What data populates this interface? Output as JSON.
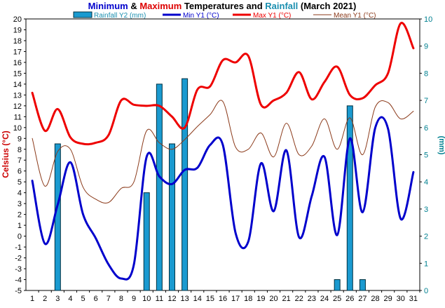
{
  "chart_data": {
    "type": "bar+line",
    "title_parts": [
      {
        "text": "Minimum",
        "color": "#0000cc"
      },
      {
        "text": " & ",
        "color": "#000000"
      },
      {
        "text": "Maximum",
        "color": "#dd0000"
      },
      {
        "text": " Temperatures and ",
        "color": "#000000"
      },
      {
        "text": "Rainfall",
        "color": "#1a8fb0"
      },
      {
        "text": " (March 2021)",
        "color": "#000000"
      }
    ],
    "ylabel_left": "Celsius (°C)",
    "ylabel_right": "(mm)",
    "ylim_left": [
      -5,
      20
    ],
    "ylim_right": [
      0,
      10
    ],
    "x": [
      1,
      2,
      3,
      4,
      5,
      6,
      7,
      8,
      9,
      10,
      11,
      12,
      13,
      14,
      15,
      16,
      17,
      18,
      19,
      20,
      21,
      22,
      23,
      24,
      25,
      26,
      27,
      28,
      29,
      30,
      31
    ],
    "y_ticks_left": [
      -5,
      -4,
      -3,
      -2,
      -1,
      0,
      1,
      2,
      3,
      4,
      5,
      6,
      7,
      8,
      9,
      10,
      11,
      12,
      13,
      14,
      15,
      16,
      17,
      18,
      19,
      20
    ],
    "y_ticks_right": [
      0,
      1,
      2,
      3,
      4,
      5,
      6,
      7,
      8,
      9,
      10
    ],
    "legend": [
      {
        "label": "Rainfall Y2 (mm)",
        "kind": "bar",
        "color": "#1a9ad0"
      },
      {
        "label": "Min Y1 (°C)",
        "kind": "line",
        "color": "#0000cc"
      },
      {
        "label": "Max Y1 (°C)",
        "kind": "line",
        "color": "#ee0000"
      },
      {
        "label": "Mean Y1 (°C)",
        "kind": "line",
        "color": "#8b3a1a"
      }
    ],
    "series": [
      {
        "name": "Rainfall Y2 (mm)",
        "axis": "right",
        "type": "bar",
        "color": "#1a9ad0",
        "values": [
          0,
          0,
          5.4,
          0,
          0,
          0,
          0,
          0,
          0,
          3.6,
          7.6,
          5.4,
          7.8,
          0,
          0,
          0,
          0,
          0,
          0,
          0,
          0,
          0,
          0,
          0,
          0.4,
          6.8,
          0.4,
          0,
          0,
          0,
          0
        ]
      },
      {
        "name": "Min Y1 (°C)",
        "axis": "left",
        "type": "line",
        "color": "#0000cc",
        "values": [
          5.1,
          -0.7,
          2.9,
          6.8,
          2.0,
          -0.2,
          -2.6,
          -3.9,
          -2.6,
          7.3,
          5.5,
          4.8,
          6.1,
          6.3,
          8.4,
          8.4,
          0.3,
          -0.5,
          6.7,
          2.3,
          7.9,
          -0.1,
          3.7,
          7.3,
          0.1,
          9.0,
          2.2,
          10.0,
          9.9,
          1.6,
          5.9
        ]
      },
      {
        "name": "Max Y1 (°C)",
        "axis": "left",
        "type": "line",
        "color": "#ee0000",
        "values": [
          13.2,
          9.7,
          11.7,
          9.1,
          8.5,
          8.6,
          9.3,
          12.5,
          12.1,
          12.0,
          12.0,
          11.0,
          10.0,
          13.5,
          13.8,
          16.2,
          16.0,
          16.6,
          12.1,
          12.5,
          13.2,
          15.1,
          12.6,
          14.2,
          15.6,
          13.0,
          12.7,
          13.9,
          15.0,
          19.6,
          17.3
        ]
      },
      {
        "name": "Mean Y1 (°C)",
        "axis": "left",
        "type": "line",
        "color": "#8b3a1a",
        "values": [
          9.0,
          4.6,
          7.8,
          8.0,
          4.5,
          3.4,
          3.1,
          4.4,
          5.0,
          9.7,
          8.6,
          8.0,
          8.9,
          10.1,
          11.2,
          12.4,
          8.2,
          8.0,
          9.5,
          7.3,
          10.4,
          7.5,
          8.3,
          10.8,
          8.0,
          10.9,
          7.5,
          11.9,
          12.3,
          10.8,
          11.5
        ]
      }
    ]
  }
}
